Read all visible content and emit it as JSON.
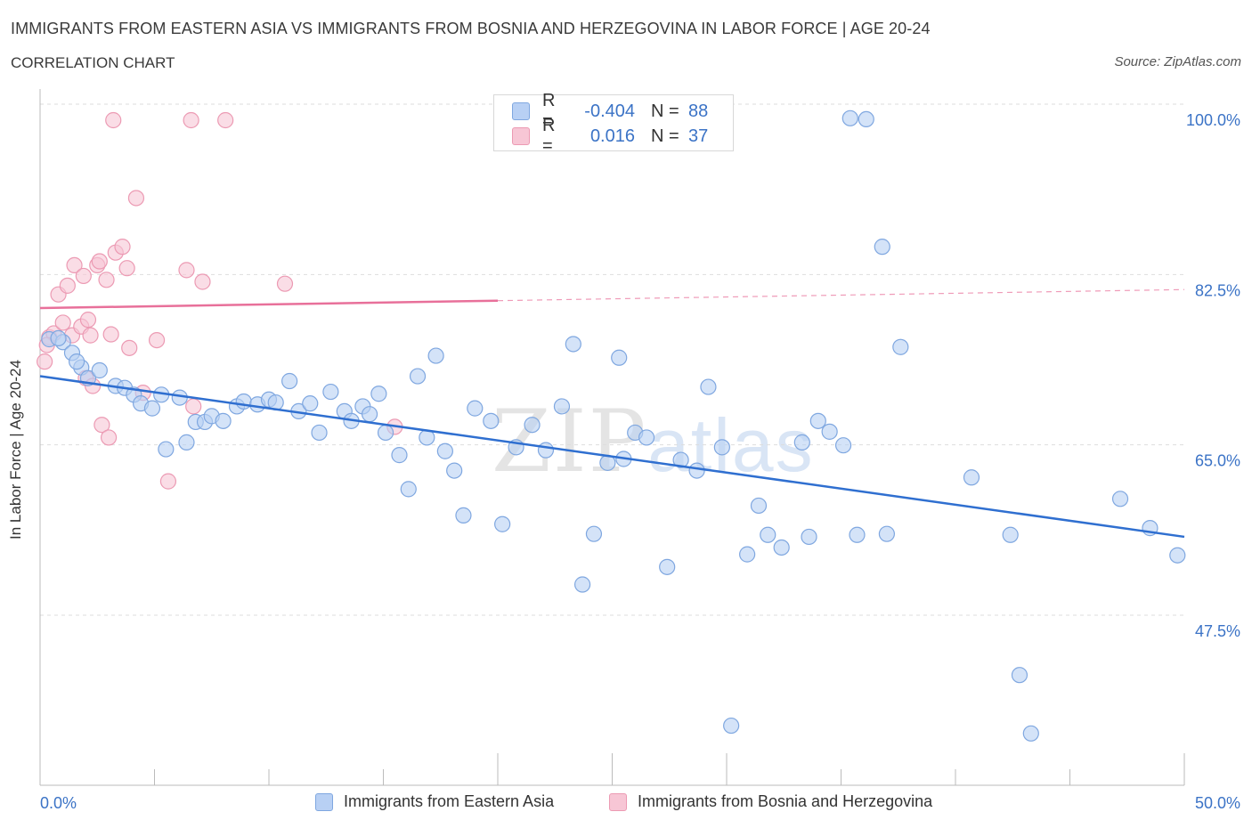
{
  "title": "IMMIGRANTS FROM EASTERN ASIA VS IMMIGRANTS FROM BOSNIA AND HERZEGOVINA IN LABOR FORCE | AGE 20-24",
  "subtitle": "CORRELATION CHART",
  "source": "Source: ZipAtlas.com",
  "watermark": {
    "zip": "ZIP",
    "atlas": "atlas"
  },
  "legend": {
    "rows": [
      {
        "r_label": "R =",
        "r_value": "-0.404",
        "n_label": "N =",
        "n_value": "88"
      },
      {
        "r_label": "R =",
        "r_value": "0.016",
        "n_label": "N =",
        "n_value": "37"
      }
    ]
  },
  "colors": {
    "blue_fill": "#b8d0f4",
    "blue_stroke": "#7fa7e0",
    "blue_line": "#2f6fd0",
    "pink_fill": "#f7c6d5",
    "pink_stroke": "#ec9ab3",
    "pink_line": "#e8709a",
    "axis_label": "#3b73c6",
    "grid": "#dddddd"
  },
  "chart_data": {
    "type": "scatter",
    "title": "IMMIGRANTS FROM EASTERN ASIA VS IMMIGRANTS FROM BOSNIA AND HERZEGOVINA IN LABOR FORCE | AGE 20-24",
    "xlabel": "",
    "ylabel": "In Labor Force | Age 20-24",
    "xlim": [
      0,
      50
    ],
    "ylim": [
      32,
      102
    ],
    "x_tick_labels": [
      "0.0%",
      "50.0%"
    ],
    "y_ticks": [
      100,
      82.5,
      65,
      47.5
    ],
    "y_tick_labels": [
      "100.0%",
      "82.5%",
      "65.0%",
      "47.5%"
    ],
    "grid": true,
    "series": [
      {
        "name": "Immigrants from Eastern Asia",
        "color": "#b8d0f4",
        "trend": {
          "x": [
            0,
            50
          ],
          "y": [
            73.7,
            57.2
          ]
        },
        "points": [
          [
            0.4,
            77.5
          ],
          [
            1.0,
            77.2
          ],
          [
            1.4,
            76.1
          ],
          [
            1.8,
            74.6
          ],
          [
            2.1,
            73.5
          ],
          [
            2.6,
            74.3
          ],
          [
            3.3,
            72.7
          ],
          [
            3.7,
            72.5
          ],
          [
            4.1,
            71.8
          ],
          [
            4.4,
            70.9
          ],
          [
            4.9,
            70.4
          ],
          [
            5.3,
            71.8
          ],
          [
            5.5,
            66.2
          ],
          [
            6.1,
            71.5
          ],
          [
            6.4,
            66.9
          ],
          [
            6.8,
            69.0
          ],
          [
            7.2,
            69.0
          ],
          [
            7.5,
            69.6
          ],
          [
            8.0,
            69.1
          ],
          [
            8.6,
            70.6
          ],
          [
            8.9,
            71.1
          ],
          [
            9.5,
            70.8
          ],
          [
            10.0,
            71.3
          ],
          [
            10.3,
            71.0
          ],
          [
            10.9,
            73.2
          ],
          [
            11.3,
            70.1
          ],
          [
            11.8,
            70.9
          ],
          [
            12.2,
            67.9
          ],
          [
            12.7,
            72.1
          ],
          [
            13.3,
            70.1
          ],
          [
            13.6,
            69.1
          ],
          [
            14.1,
            70.6
          ],
          [
            14.4,
            69.8
          ],
          [
            14.8,
            71.9
          ],
          [
            15.1,
            67.9
          ],
          [
            15.7,
            65.6
          ],
          [
            16.1,
            62.1
          ],
          [
            16.5,
            73.7
          ],
          [
            16.9,
            67.4
          ],
          [
            17.3,
            75.8
          ],
          [
            17.7,
            66.0
          ],
          [
            18.1,
            64.0
          ],
          [
            18.5,
            59.4
          ],
          [
            19.0,
            70.4
          ],
          [
            19.7,
            69.1
          ],
          [
            20.2,
            58.5
          ],
          [
            20.8,
            66.4
          ],
          [
            21.5,
            68.7
          ],
          [
            22.1,
            66.1
          ],
          [
            22.8,
            70.6
          ],
          [
            23.3,
            77.0
          ],
          [
            23.7,
            52.3
          ],
          [
            24.2,
            57.5
          ],
          [
            24.8,
            64.8
          ],
          [
            25.3,
            75.6
          ],
          [
            25.5,
            65.2
          ],
          [
            26.0,
            67.9
          ],
          [
            26.5,
            67.4
          ],
          [
            27.4,
            54.1
          ],
          [
            28.0,
            65.1
          ],
          [
            28.7,
            64.0
          ],
          [
            29.2,
            72.6
          ],
          [
            29.8,
            66.4
          ],
          [
            30.2,
            37.8
          ],
          [
            30.9,
            55.4
          ],
          [
            31.4,
            60.4
          ],
          [
            31.8,
            57.4
          ],
          [
            32.4,
            56.1
          ],
          [
            33.3,
            66.9
          ],
          [
            33.6,
            57.2
          ],
          [
            34.0,
            69.1
          ],
          [
            34.5,
            68.0
          ],
          [
            35.1,
            66.6
          ],
          [
            35.7,
            57.4
          ],
          [
            35.4,
            100.2
          ],
          [
            36.1,
            100.1
          ],
          [
            36.8,
            87.0
          ],
          [
            37.0,
            57.5
          ],
          [
            37.6,
            76.7
          ],
          [
            40.7,
            63.3
          ],
          [
            42.4,
            57.4
          ],
          [
            42.8,
            43.0
          ],
          [
            43.3,
            37.0
          ],
          [
            47.2,
            61.1
          ],
          [
            48.5,
            58.1
          ],
          [
            49.7,
            55.3
          ],
          [
            0.8,
            77.6
          ],
          [
            1.6,
            75.2
          ]
        ]
      },
      {
        "name": "Immigrants from Bosnia and Herzegovina",
        "color": "#f7c6d5",
        "trend": {
          "x": [
            0,
            50
          ],
          "y": [
            80.7,
            82.6
          ],
          "solid_until": 20
        },
        "points": [
          [
            0.2,
            75.2
          ],
          [
            0.4,
            77.7
          ],
          [
            0.6,
            78.1
          ],
          [
            0.8,
            82.1
          ],
          [
            1.0,
            79.2
          ],
          [
            1.2,
            83.0
          ],
          [
            1.4,
            77.9
          ],
          [
            1.5,
            85.1
          ],
          [
            1.8,
            78.8
          ],
          [
            1.9,
            84.0
          ],
          [
            2.0,
            73.5
          ],
          [
            2.1,
            79.5
          ],
          [
            2.2,
            77.9
          ],
          [
            2.3,
            72.7
          ],
          [
            2.5,
            85.1
          ],
          [
            2.6,
            85.5
          ],
          [
            2.7,
            68.7
          ],
          [
            2.9,
            83.6
          ],
          [
            3.0,
            67.4
          ],
          [
            3.1,
            78.0
          ],
          [
            3.3,
            86.4
          ],
          [
            3.6,
            87.0
          ],
          [
            3.8,
            84.8
          ],
          [
            3.9,
            76.6
          ],
          [
            4.2,
            92.0
          ],
          [
            4.5,
            72.0
          ],
          [
            5.1,
            77.4
          ],
          [
            5.6,
            62.9
          ],
          [
            6.4,
            84.6
          ],
          [
            6.6,
            100.0
          ],
          [
            6.7,
            70.6
          ],
          [
            7.1,
            83.4
          ],
          [
            8.1,
            100.0
          ],
          [
            10.7,
            83.2
          ],
          [
            15.5,
            68.5
          ],
          [
            3.2,
            100.0
          ],
          [
            0.3,
            76.9
          ]
        ]
      }
    ]
  },
  "bottom_legend": [
    {
      "label": "Immigrants from Eastern Asia"
    },
    {
      "label": "Immigrants from Bosnia and Herzegovina"
    }
  ]
}
